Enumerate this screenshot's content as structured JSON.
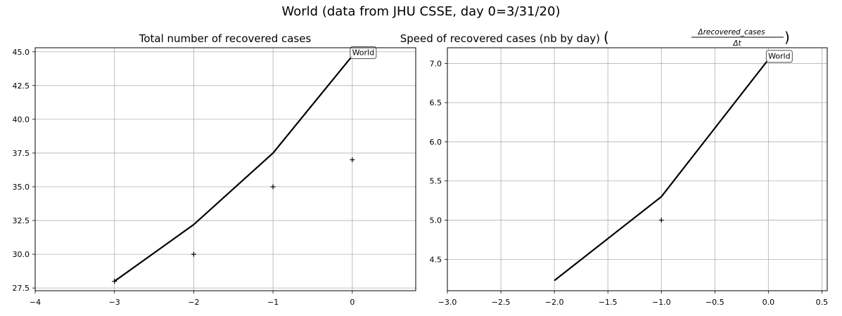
{
  "suptitle": "World (data from JHU CSSE, day 0=3/31/20)",
  "chart_data": [
    {
      "type": "line",
      "title": "Total number of recovered cases",
      "xlim": [
        -4,
        0.8
      ],
      "ylim": [
        27.3,
        45.3
      ],
      "xticks": [
        -4,
        -3,
        -2,
        -1,
        0
      ],
      "xtick_labels": [
        "−4",
        "−3",
        "−2",
        "−1",
        "0"
      ],
      "yticks": [
        27.5,
        30.0,
        32.5,
        35.0,
        37.5,
        40.0,
        42.5,
        45.0
      ],
      "ytick_labels": [
        "27.5",
        "30.0",
        "32.5",
        "35.0",
        "37.5",
        "40.0",
        "42.5",
        "45.0"
      ],
      "grid": true,
      "series": [
        {
          "style": "line",
          "color": "#000000",
          "x": [
            -3,
            -2,
            -1,
            0
          ],
          "y": [
            28.0,
            32.2,
            37.5,
            44.7
          ]
        },
        {
          "style": "markers",
          "marker": "+",
          "color": "#000000",
          "x": [
            -3,
            -2,
            -1,
            0
          ],
          "y": [
            28,
            30,
            35,
            37
          ]
        }
      ],
      "annotation": {
        "text": "World",
        "x": 0,
        "y": 44.7
      }
    },
    {
      "type": "line",
      "title": "Speed of recovered cases (nb by day)",
      "title_formula": {
        "numerator": "Δrecovered_cases",
        "denominator": "Δt"
      },
      "xlim": [
        -3.0,
        0.55
      ],
      "ylim": [
        4.1,
        7.2
      ],
      "xticks": [
        -3.0,
        -2.5,
        -2.0,
        -1.5,
        -1.0,
        -0.5,
        0.0,
        0.5
      ],
      "xtick_labels": [
        "−3.0",
        "−2.5",
        "−2.0",
        "−1.5",
        "−1.0",
        "−0.5",
        "0.0",
        "0.5"
      ],
      "yticks": [
        4.5,
        5.0,
        5.5,
        6.0,
        6.5,
        7.0
      ],
      "ytick_labels": [
        "4.5",
        "5.0",
        "5.5",
        "6.0",
        "6.5",
        "7.0"
      ],
      "grid": true,
      "series": [
        {
          "style": "line",
          "color": "#000000",
          "x": [
            -2,
            -1,
            0
          ],
          "y": [
            4.23,
            5.3,
            7.05
          ]
        },
        {
          "style": "markers",
          "marker": "+",
          "color": "#000000",
          "x": [
            -1
          ],
          "y": [
            5.0
          ]
        }
      ],
      "annotation": {
        "text": "World",
        "x": 0,
        "y": 7.05
      }
    }
  ]
}
